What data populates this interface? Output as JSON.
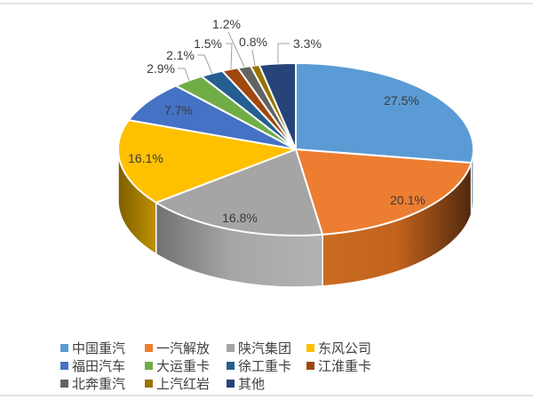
{
  "page": {
    "background": "#FFFFFF",
    "top_border_color": "#E6E6E6",
    "bottom_border_color": "#E2E2E2"
  },
  "chart_data": {
    "type": "pie",
    "style": "3d-pie",
    "title": "",
    "categories": [
      "中国重汽",
      "一汽解放",
      "陕汽集团",
      "东风公司",
      "福田汽车",
      "大运重卡",
      "徐工重卡",
      "江淮重卡",
      "北奔重汽",
      "上汽红岩",
      "其他"
    ],
    "values": [
      27.5,
      20.1,
      16.8,
      16.1,
      7.7,
      2.9,
      2.1,
      1.5,
      1.2,
      0.8,
      3.3
    ],
    "labels": [
      "27.5%",
      "20.1%",
      "16.8%",
      "16.1%",
      "7.7%",
      "2.9%",
      "2.1%",
      "1.5%",
      "1.2%",
      "0.8%",
      "3.3%"
    ],
    "colors": [
      "#5B9BD5",
      "#ED7D31",
      "#A5A5A5",
      "#FFC000",
      "#4472C4",
      "#70AD47",
      "#255E91",
      "#9E480E",
      "#636363",
      "#997300",
      "#264478"
    ],
    "label_color": "#3A3A3A",
    "leader_line_color": "#A0A0A0",
    "legend_position": "bottom",
    "legend_text_color": "#3F3F3F"
  }
}
